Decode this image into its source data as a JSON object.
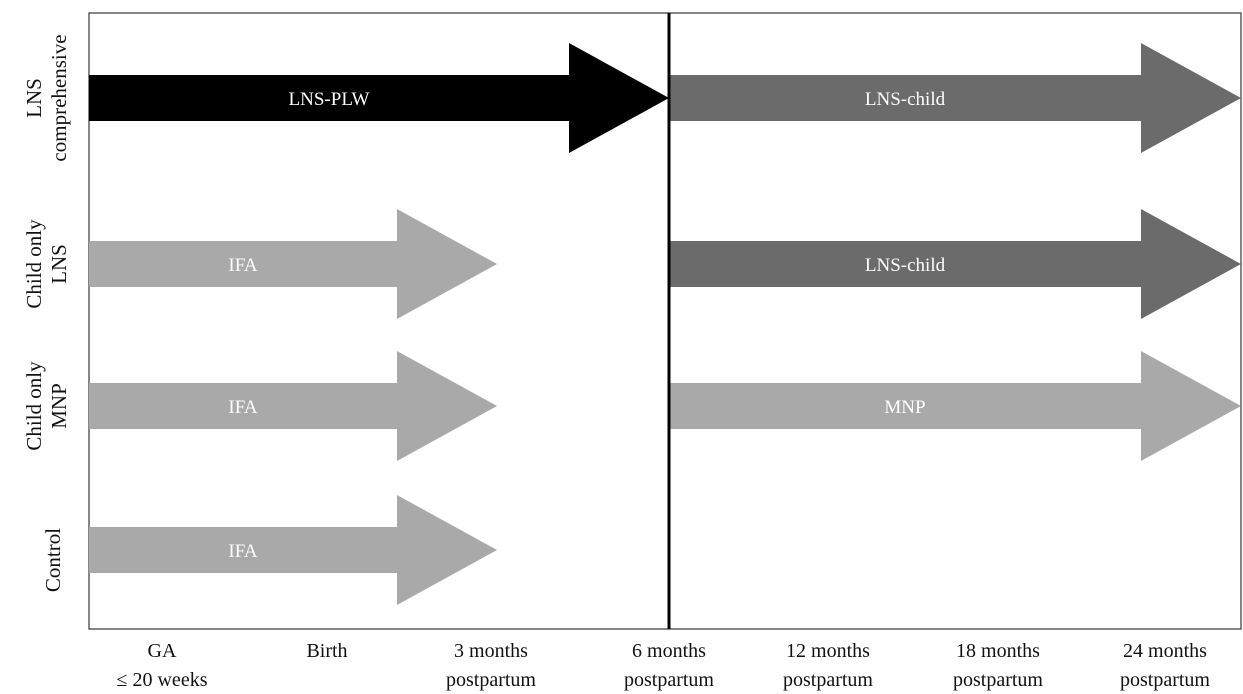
{
  "diagram": {
    "rows": [
      {
        "id": "lns-comprehensive",
        "label_lines": [
          "LNS",
          "comprehensive"
        ]
      },
      {
        "id": "child-only-lns",
        "label_lines": [
          "Child only",
          "LNS"
        ]
      },
      {
        "id": "child-only-mnp",
        "label_lines": [
          "Child only",
          "MNP"
        ]
      },
      {
        "id": "control",
        "label_lines": [
          "Control"
        ]
      }
    ],
    "timepoints": [
      {
        "line1": "GA",
        "line2": "≤ 20 weeks"
      },
      {
        "line1": "Birth",
        "line2": ""
      },
      {
        "line1": "3 months",
        "line2": "postpartum"
      },
      {
        "line1": "6 months",
        "line2": "postpartum"
      },
      {
        "line1": "12 months",
        "line2": "postpartum"
      },
      {
        "line1": "18 months",
        "line2": "postpartum"
      },
      {
        "line1": "24 months",
        "line2": "postpartum"
      }
    ],
    "arrows": [
      {
        "row": 0,
        "label": "LNS-PLW",
        "from": 0,
        "to": 3,
        "color": "#000000"
      },
      {
        "row": 0,
        "label": "LNS-child",
        "from": 3,
        "to": 6,
        "color": "#6b6b6b"
      },
      {
        "row": 1,
        "label": "IFA",
        "from": 0,
        "to": 2,
        "color": "#a9a9a9"
      },
      {
        "row": 1,
        "label": "LNS-child",
        "from": 3,
        "to": 6,
        "color": "#6b6b6b"
      },
      {
        "row": 2,
        "label": "IFA",
        "from": 0,
        "to": 2,
        "color": "#a9a9a9"
      },
      {
        "row": 2,
        "label": "MNP",
        "from": 3,
        "to": 6,
        "color": "#a9a9a9"
      },
      {
        "row": 3,
        "label": "IFA",
        "from": 0,
        "to": 2,
        "color": "#a9a9a9"
      }
    ],
    "divider_at": 3
  }
}
